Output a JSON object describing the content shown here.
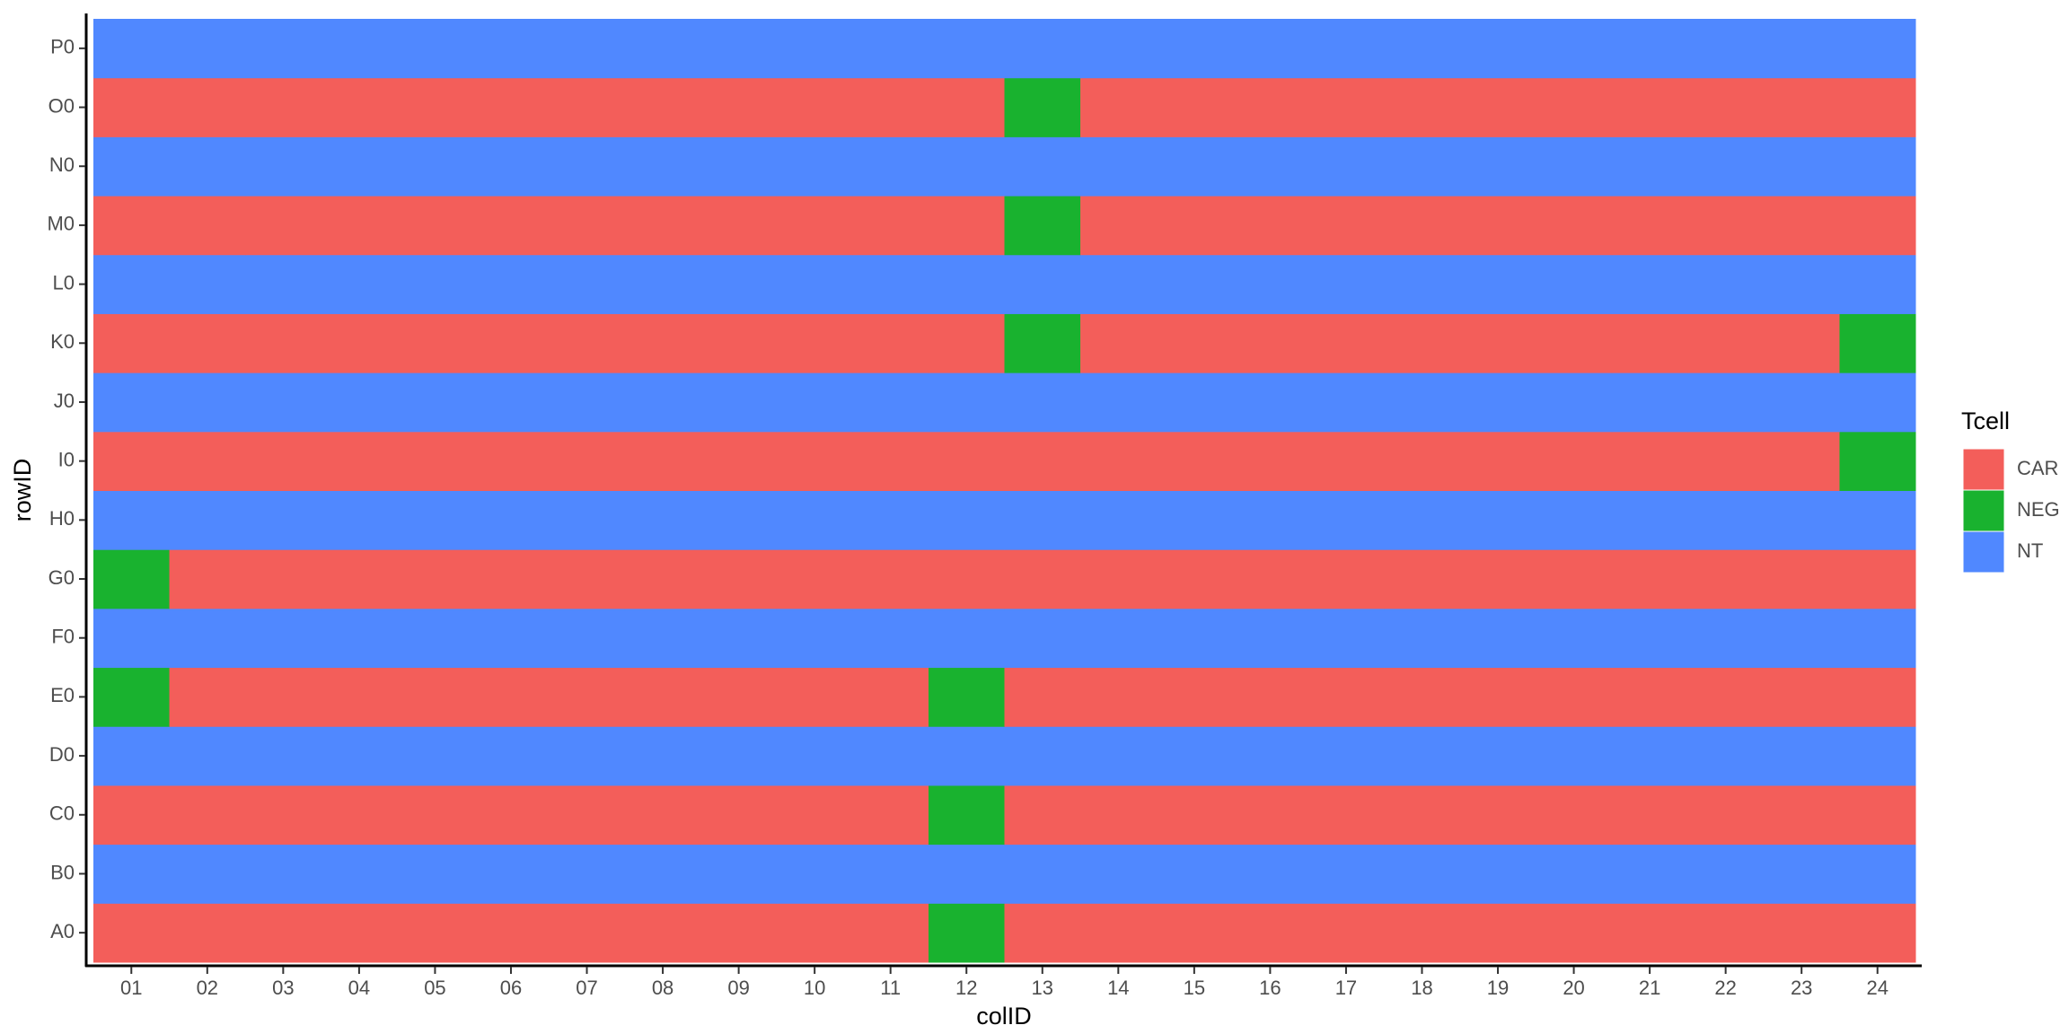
{
  "chart_data": {
    "type": "tile",
    "x_label": "colID",
    "y_label": "rowID",
    "legend_title": "Tcell",
    "x": [
      "01",
      "02",
      "03",
      "04",
      "05",
      "06",
      "07",
      "08",
      "09",
      "10",
      "11",
      "12",
      "13",
      "14",
      "15",
      "16",
      "17",
      "18",
      "19",
      "20",
      "21",
      "22",
      "23",
      "24"
    ],
    "y": [
      "A0",
      "B0",
      "C0",
      "D0",
      "E0",
      "F0",
      "G0",
      "H0",
      "I0",
      "J0",
      "K0",
      "L0",
      "M0",
      "N0",
      "O0",
      "P0"
    ],
    "series": [
      {
        "name": "CAR",
        "color": "#f35e5a"
      },
      {
        "name": "NEG",
        "color": "#19b22f"
      },
      {
        "name": "NT",
        "color": "#5088ff"
      }
    ],
    "values": [
      [
        "CAR",
        "CAR",
        "CAR",
        "CAR",
        "CAR",
        "CAR",
        "CAR",
        "CAR",
        "CAR",
        "CAR",
        "CAR",
        "NEG",
        "CAR",
        "CAR",
        "CAR",
        "CAR",
        "CAR",
        "CAR",
        "CAR",
        "CAR",
        "CAR",
        "CAR",
        "CAR",
        "CAR"
      ],
      [
        "NT",
        "NT",
        "NT",
        "NT",
        "NT",
        "NT",
        "NT",
        "NT",
        "NT",
        "NT",
        "NT",
        "NT",
        "NT",
        "NT",
        "NT",
        "NT",
        "NT",
        "NT",
        "NT",
        "NT",
        "NT",
        "NT",
        "NT",
        "NT"
      ],
      [
        "CAR",
        "CAR",
        "CAR",
        "CAR",
        "CAR",
        "CAR",
        "CAR",
        "CAR",
        "CAR",
        "CAR",
        "CAR",
        "NEG",
        "CAR",
        "CAR",
        "CAR",
        "CAR",
        "CAR",
        "CAR",
        "CAR",
        "CAR",
        "CAR",
        "CAR",
        "CAR",
        "CAR"
      ],
      [
        "NT",
        "NT",
        "NT",
        "NT",
        "NT",
        "NT",
        "NT",
        "NT",
        "NT",
        "NT",
        "NT",
        "NT",
        "NT",
        "NT",
        "NT",
        "NT",
        "NT",
        "NT",
        "NT",
        "NT",
        "NT",
        "NT",
        "NT",
        "NT"
      ],
      [
        "NEG",
        "CAR",
        "CAR",
        "CAR",
        "CAR",
        "CAR",
        "CAR",
        "CAR",
        "CAR",
        "CAR",
        "CAR",
        "NEG",
        "CAR",
        "CAR",
        "CAR",
        "CAR",
        "CAR",
        "CAR",
        "CAR",
        "CAR",
        "CAR",
        "CAR",
        "CAR",
        "CAR"
      ],
      [
        "NT",
        "NT",
        "NT",
        "NT",
        "NT",
        "NT",
        "NT",
        "NT",
        "NT",
        "NT",
        "NT",
        "NT",
        "NT",
        "NT",
        "NT",
        "NT",
        "NT",
        "NT",
        "NT",
        "NT",
        "NT",
        "NT",
        "NT",
        "NT"
      ],
      [
        "NEG",
        "CAR",
        "CAR",
        "CAR",
        "CAR",
        "CAR",
        "CAR",
        "CAR",
        "CAR",
        "CAR",
        "CAR",
        "CAR",
        "CAR",
        "CAR",
        "CAR",
        "CAR",
        "CAR",
        "CAR",
        "CAR",
        "CAR",
        "CAR",
        "CAR",
        "CAR",
        "CAR"
      ],
      [
        "NT",
        "NT",
        "NT",
        "NT",
        "NT",
        "NT",
        "NT",
        "NT",
        "NT",
        "NT",
        "NT",
        "NT",
        "NT",
        "NT",
        "NT",
        "NT",
        "NT",
        "NT",
        "NT",
        "NT",
        "NT",
        "NT",
        "NT",
        "NT"
      ],
      [
        "CAR",
        "CAR",
        "CAR",
        "CAR",
        "CAR",
        "CAR",
        "CAR",
        "CAR",
        "CAR",
        "CAR",
        "CAR",
        "CAR",
        "CAR",
        "CAR",
        "CAR",
        "CAR",
        "CAR",
        "CAR",
        "CAR",
        "CAR",
        "CAR",
        "CAR",
        "CAR",
        "NEG"
      ],
      [
        "NT",
        "NT",
        "NT",
        "NT",
        "NT",
        "NT",
        "NT",
        "NT",
        "NT",
        "NT",
        "NT",
        "NT",
        "NT",
        "NT",
        "NT",
        "NT",
        "NT",
        "NT",
        "NT",
        "NT",
        "NT",
        "NT",
        "NT",
        "NT"
      ],
      [
        "CAR",
        "CAR",
        "CAR",
        "CAR",
        "CAR",
        "CAR",
        "CAR",
        "CAR",
        "CAR",
        "CAR",
        "CAR",
        "CAR",
        "NEG",
        "CAR",
        "CAR",
        "CAR",
        "CAR",
        "CAR",
        "CAR",
        "CAR",
        "CAR",
        "CAR",
        "CAR",
        "NEG"
      ],
      [
        "NT",
        "NT",
        "NT",
        "NT",
        "NT",
        "NT",
        "NT",
        "NT",
        "NT",
        "NT",
        "NT",
        "NT",
        "NT",
        "NT",
        "NT",
        "NT",
        "NT",
        "NT",
        "NT",
        "NT",
        "NT",
        "NT",
        "NT",
        "NT"
      ],
      [
        "CAR",
        "CAR",
        "CAR",
        "CAR",
        "CAR",
        "CAR",
        "CAR",
        "CAR",
        "CAR",
        "CAR",
        "CAR",
        "CAR",
        "NEG",
        "CAR",
        "CAR",
        "CAR",
        "CAR",
        "CAR",
        "CAR",
        "CAR",
        "CAR",
        "CAR",
        "CAR",
        "CAR"
      ],
      [
        "NT",
        "NT",
        "NT",
        "NT",
        "NT",
        "NT",
        "NT",
        "NT",
        "NT",
        "NT",
        "NT",
        "NT",
        "NT",
        "NT",
        "NT",
        "NT",
        "NT",
        "NT",
        "NT",
        "NT",
        "NT",
        "NT",
        "NT",
        "NT"
      ],
      [
        "CAR",
        "CAR",
        "CAR",
        "CAR",
        "CAR",
        "CAR",
        "CAR",
        "CAR",
        "CAR",
        "CAR",
        "CAR",
        "CAR",
        "NEG",
        "CAR",
        "CAR",
        "CAR",
        "CAR",
        "CAR",
        "CAR",
        "CAR",
        "CAR",
        "CAR",
        "CAR",
        "CAR"
      ],
      [
        "NT",
        "NT",
        "NT",
        "NT",
        "NT",
        "NT",
        "NT",
        "NT",
        "NT",
        "NT",
        "NT",
        "NT",
        "NT",
        "NT",
        "NT",
        "NT",
        "NT",
        "NT",
        "NT",
        "NT",
        "NT",
        "NT",
        "NT",
        "NT"
      ]
    ]
  }
}
